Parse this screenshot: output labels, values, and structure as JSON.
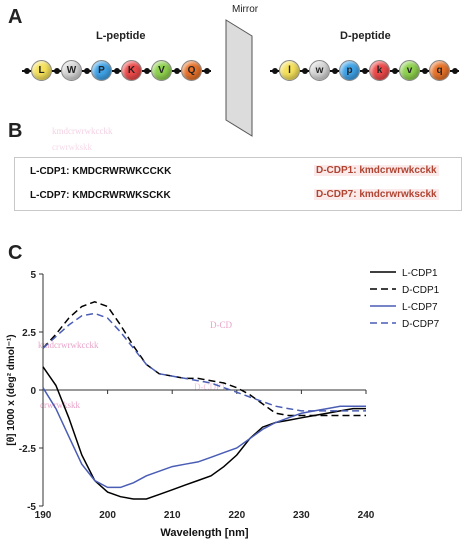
{
  "panels": {
    "a": "A",
    "b": "B",
    "c": "C"
  },
  "panel_a": {
    "l_title": "L-peptide",
    "d_title": "D-peptide",
    "mirror_label": "Mirror",
    "l_residues": [
      {
        "letter": "L",
        "color": "#f5e15a"
      },
      {
        "letter": "W",
        "color": "#d6d6d6"
      },
      {
        "letter": "P",
        "color": "#3fa3e8"
      },
      {
        "letter": "K",
        "color": "#ee4a4a"
      },
      {
        "letter": "V",
        "color": "#8fd14f"
      },
      {
        "letter": "Q",
        "color": "#e8732a"
      }
    ],
    "d_residues": [
      {
        "letter": "l",
        "color": "#f5e15a"
      },
      {
        "letter": "w",
        "color": "#d6d6d6"
      },
      {
        "letter": "p",
        "color": "#3fa3e8"
      },
      {
        "letter": "k",
        "color": "#ee4a4a"
      },
      {
        "letter": "v",
        "color": "#8fd14f"
      },
      {
        "letter": "q",
        "color": "#e8732a"
      }
    ]
  },
  "panel_b": {
    "l_cdp1": "L-CDP1: KMDCRWRWKCCKK",
    "l_cdp7": "L-CDP7: KMDCRWRWKSCKK",
    "d_cdp1": "D-CDP1: kmdcrwrwkcckk",
    "d_cdp7": "D-CDP7: kmdcrwrwksckk"
  },
  "ghost_text": {
    "g1": "kmdcrwrwkcckk",
    "g2": "D-CD",
    "g3": "D-CDP1",
    "g4": "crwrwkskk"
  },
  "chart_data": {
    "type": "line",
    "xlabel": "Wavelength [nm]",
    "ylabel": "[θ] 1000 x (deg² dmol⁻¹)",
    "xlim": [
      190,
      240
    ],
    "ylim": [
      -5,
      5
    ],
    "xticks": [
      "190",
      "200",
      "210",
      "220",
      "230",
      "240"
    ],
    "yticks": [
      "5",
      "2.5",
      "0",
      "-2.5",
      "-5"
    ],
    "ytick_values": [
      5,
      2.5,
      0,
      -2.5,
      -5
    ],
    "legend_position": "top-right",
    "series": [
      {
        "name": "L-CDP1",
        "color": "#000000",
        "dash": "solid",
        "x": [
          190,
          192,
          194,
          196,
          198,
          200,
          202,
          204,
          206,
          208,
          210,
          212,
          214,
          216,
          218,
          220,
          222,
          224,
          226,
          228,
          230,
          232,
          234,
          236,
          238,
          240
        ],
        "y": [
          1.0,
          0.2,
          -1.2,
          -2.8,
          -3.9,
          -4.4,
          -4.6,
          -4.7,
          -4.7,
          -4.5,
          -4.3,
          -4.1,
          -3.9,
          -3.7,
          -3.3,
          -2.8,
          -2.1,
          -1.6,
          -1.4,
          -1.3,
          -1.2,
          -1.1,
          -1.0,
          -0.9,
          -0.8,
          -0.8
        ]
      },
      {
        "name": "D-CDP1",
        "color": "#000000",
        "dash": "dashed",
        "x": [
          190,
          192,
          194,
          196,
          198,
          200,
          202,
          204,
          206,
          208,
          210,
          212,
          214,
          216,
          218,
          220,
          222,
          224,
          226,
          228,
          230,
          232,
          234,
          236,
          238,
          240
        ],
        "y": [
          1.8,
          2.4,
          3.1,
          3.6,
          3.8,
          3.6,
          2.8,
          1.9,
          1.1,
          0.7,
          0.6,
          0.5,
          0.5,
          0.4,
          0.3,
          0.1,
          -0.2,
          -0.6,
          -1.0,
          -1.1,
          -1.1,
          -1.1,
          -1.1,
          -1.1,
          -1.1,
          -1.1
        ]
      },
      {
        "name": "L-CDP7",
        "color": "#4a5db5",
        "dash": "solid",
        "x": [
          190,
          192,
          194,
          196,
          198,
          200,
          202,
          204,
          206,
          208,
          210,
          212,
          214,
          216,
          218,
          220,
          222,
          224,
          226,
          228,
          230,
          232,
          234,
          236,
          238,
          240
        ],
        "y": [
          0.1,
          -0.8,
          -2.0,
          -3.2,
          -3.9,
          -4.2,
          -4.2,
          -4.0,
          -3.7,
          -3.5,
          -3.3,
          -3.2,
          -3.1,
          -2.9,
          -2.7,
          -2.5,
          -2.1,
          -1.7,
          -1.4,
          -1.2,
          -1.0,
          -0.9,
          -0.8,
          -0.7,
          -0.7,
          -0.7
        ]
      },
      {
        "name": "D-CDP7",
        "color": "#4a5db5",
        "dash": "dashed",
        "x": [
          190,
          192,
          194,
          196,
          198,
          200,
          202,
          204,
          206,
          208,
          210,
          212,
          214,
          216,
          218,
          220,
          222,
          224,
          226,
          228,
          230,
          232,
          234,
          236,
          238,
          240
        ],
        "y": [
          1.8,
          2.3,
          2.8,
          3.2,
          3.3,
          3.1,
          2.5,
          1.8,
          1.1,
          0.7,
          0.6,
          0.5,
          0.4,
          0.3,
          0.1,
          -0.1,
          -0.3,
          -0.5,
          -0.7,
          -0.8,
          -0.9,
          -0.9,
          -0.9,
          -0.9,
          -0.9,
          -0.9
        ]
      }
    ]
  }
}
